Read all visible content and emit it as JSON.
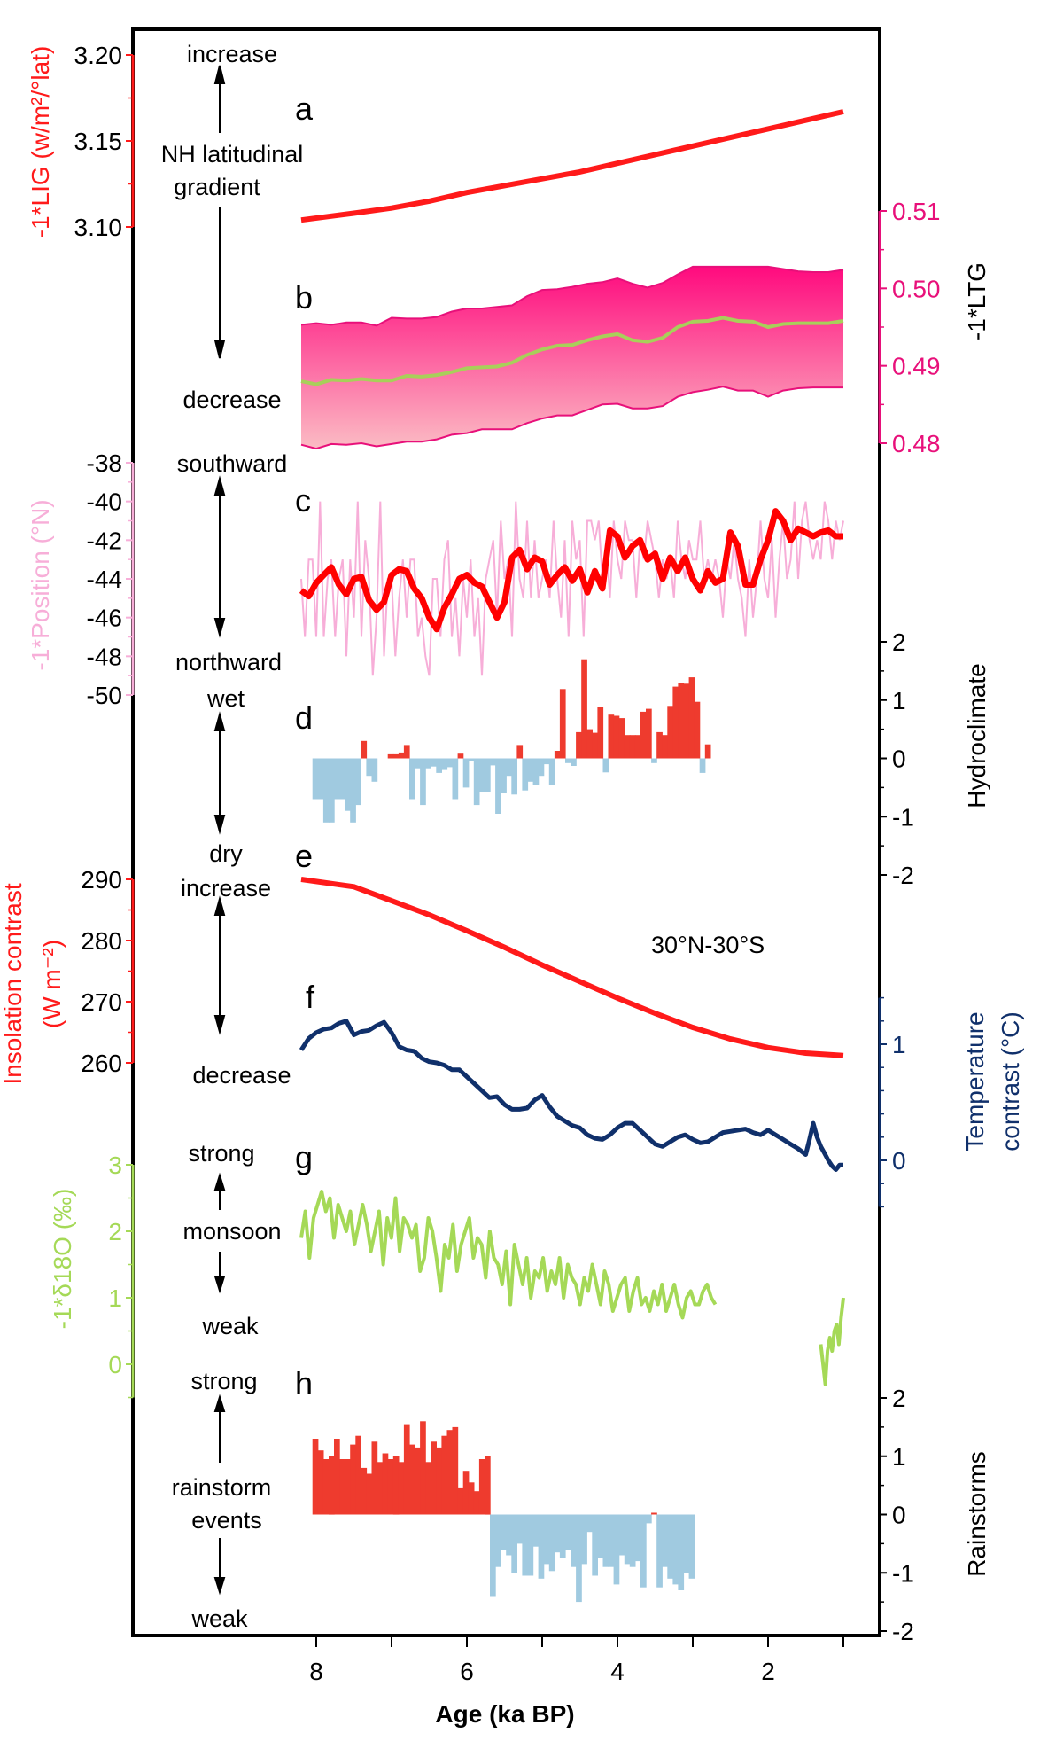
{
  "chart_data": [
    {
      "panel": "a",
      "type": "line",
      "title": "NH latitudinal gradient",
      "ylabel": "-1*LIG (w/m²/°lat)",
      "yaxis_side": "left",
      "yticks": [
        "3.20",
        "3.15",
        "3.10"
      ],
      "ylim": [
        3.1,
        3.2
      ],
      "color": "#ff1a1a",
      "annotations": {
        "top": "increase",
        "bottom": "decrease",
        "middle": [
          "NH latitudinal",
          "gradient"
        ]
      },
      "x": [
        8.2,
        7.5,
        7,
        6.5,
        6,
        5.5,
        5,
        4.5,
        4,
        3.5,
        3,
        2.5,
        2,
        1.5,
        1
      ],
      "y": [
        3.104,
        3.108,
        3.111,
        3.115,
        3.12,
        3.124,
        3.128,
        3.132,
        3.137,
        3.142,
        3.147,
        3.152,
        3.157,
        3.162,
        3.167
      ]
    },
    {
      "panel": "b",
      "type": "area",
      "ylabel": "-1*LTG",
      "yaxis_side": "right",
      "yticks": [
        "0.51",
        "0.50",
        "0.49",
        "0.48"
      ],
      "ylim": [
        0.48,
        0.51
      ],
      "band_color_top": "#ff0a7e",
      "band_color_bottom": "#fbb9c2",
      "mean_color": "#a8cf5a",
      "x": [
        8.2,
        8.0,
        7.8,
        7.6,
        7.4,
        7.2,
        7.0,
        6.8,
        6.6,
        6.4,
        6.2,
        6.0,
        5.8,
        5.6,
        5.4,
        5.2,
        5.0,
        4.8,
        4.6,
        4.4,
        4.2,
        4.0,
        3.8,
        3.6,
        3.4,
        3.2,
        3.0,
        2.8,
        2.6,
        2.4,
        2.2,
        2.0,
        1.8,
        1.6,
        1.4,
        1.2,
        1.0
      ],
      "upper": [
        0.4953,
        0.4955,
        0.4953,
        0.4956,
        0.4956,
        0.4952,
        0.4962,
        0.4961,
        0.4961,
        0.4963,
        0.497,
        0.4974,
        0.4974,
        0.4976,
        0.4978,
        0.499,
        0.4998,
        0.4999,
        0.5002,
        0.5006,
        0.5008,
        0.5013,
        0.5006,
        0.5001,
        0.5007,
        0.5018,
        0.5028,
        0.5028,
        0.5028,
        0.5028,
        0.5028,
        0.5028,
        0.5025,
        0.5022,
        0.5021,
        0.5021,
        0.5024
      ],
      "mean": [
        0.488,
        0.4876,
        0.4882,
        0.4881,
        0.4883,
        0.4881,
        0.4881,
        0.4887,
        0.4886,
        0.4888,
        0.4892,
        0.4897,
        0.4898,
        0.4899,
        0.4904,
        0.4914,
        0.4921,
        0.4926,
        0.4927,
        0.4933,
        0.4938,
        0.4941,
        0.4933,
        0.4931,
        0.4936,
        0.495,
        0.4957,
        0.4958,
        0.4962,
        0.4958,
        0.4957,
        0.495,
        0.4954,
        0.4955,
        0.4955,
        0.4955,
        0.4958
      ],
      "lower": [
        0.4798,
        0.4793,
        0.4799,
        0.4798,
        0.48,
        0.4796,
        0.4799,
        0.4802,
        0.4802,
        0.4805,
        0.4811,
        0.4813,
        0.4818,
        0.4818,
        0.4818,
        0.4826,
        0.4832,
        0.4836,
        0.4836,
        0.4843,
        0.485,
        0.4851,
        0.4845,
        0.4845,
        0.4848,
        0.486,
        0.4866,
        0.4869,
        0.4873,
        0.4868,
        0.4868,
        0.486,
        0.4868,
        0.4871,
        0.4872,
        0.4872,
        0.4872
      ]
    },
    {
      "panel": "c",
      "type": "line",
      "ylabel": "-1*Position (°N)",
      "yaxis_side": "left",
      "yticks": [
        "-38",
        "-40",
        "-42",
        "-44",
        "-46",
        "-48",
        "-50"
      ],
      "ylim": [
        -50,
        -38
      ],
      "raw_color": "#f7aed8",
      "smooth_color": "#ff0000",
      "annotations": {
        "top": "southward",
        "bottom": "northward"
      },
      "x_smooth": [
        8.2,
        8.1,
        8.0,
        7.9,
        7.8,
        7.7,
        7.6,
        7.5,
        7.4,
        7.3,
        7.2,
        7.1,
        7.0,
        6.9,
        6.8,
        6.7,
        6.6,
        6.5,
        6.4,
        6.3,
        6.2,
        6.1,
        6.0,
        5.9,
        5.8,
        5.7,
        5.6,
        5.5,
        5.4,
        5.3,
        5.2,
        5.1,
        5.0,
        4.9,
        4.8,
        4.7,
        4.6,
        4.5,
        4.4,
        4.3,
        4.2,
        4.1,
        4.0,
        3.9,
        3.8,
        3.7,
        3.6,
        3.5,
        3.4,
        3.3,
        3.2,
        3.1,
        3.0,
        2.9,
        2.8,
        2.7,
        2.6,
        2.5,
        2.4,
        2.3,
        2.2,
        2.1,
        2.0,
        1.9,
        1.8,
        1.7,
        1.6,
        1.5,
        1.4,
        1.3,
        1.2,
        1.1,
        1.0
      ],
      "smooth": [
        -44.6,
        -44.9,
        -44.2,
        -43.8,
        -43.4,
        -44.3,
        -44.8,
        -44.0,
        -43.9,
        -45.1,
        -45.6,
        -45.2,
        -43.8,
        -43.5,
        -43.6,
        -44.5,
        -45.0,
        -46.0,
        -46.6,
        -45.5,
        -44.8,
        -44.0,
        -43.8,
        -44.2,
        -44.4,
        -45.2,
        -46.0,
        -45.2,
        -42.9,
        -42.5,
        -43.5,
        -42.9,
        -43.1,
        -44.3,
        -43.8,
        -43.4,
        -44.1,
        -43.5,
        -44.7,
        -43.6,
        -44.5,
        -41.5,
        -41.8,
        -42.9,
        -42.3,
        -42.0,
        -43.0,
        -42.7,
        -44.0,
        -42.9,
        -43.6,
        -42.9,
        -44.0,
        -44.6,
        -43.6,
        -44.2,
        -44.0,
        -41.6,
        -42.3,
        -44.3,
        -44.3,
        -43.0,
        -42.0,
        -40.5,
        -41.0,
        -42.0,
        -41.4,
        -41.6,
        -41.8,
        -41.6,
        -41.5,
        -41.8,
        -41.8
      ],
      "x_raw": [
        8.2,
        8.15,
        8.1,
        8.05,
        8.0,
        7.95,
        7.9,
        7.85,
        7.8,
        7.75,
        7.7,
        7.65,
        7.6,
        7.55,
        7.5,
        7.45,
        7.4,
        7.35,
        7.3,
        7.25,
        7.2,
        7.15,
        7.1,
        7.05,
        7.0,
        6.95,
        6.9,
        6.85,
        6.8,
        6.75,
        6.7,
        6.65,
        6.6,
        6.55,
        6.5,
        6.45,
        6.4,
        6.35,
        6.3,
        6.25,
        6.2,
        6.15,
        6.1,
        6.05,
        6.0,
        5.95,
        5.9,
        5.85,
        5.8,
        5.75,
        5.7,
        5.65,
        5.6,
        5.55,
        5.5,
        5.45,
        5.4,
        5.35,
        5.3,
        5.25,
        5.2,
        5.15,
        5.1,
        5.05,
        5.0,
        4.95,
        4.9,
        4.85,
        4.8,
        4.75,
        4.7,
        4.65,
        4.6,
        4.55,
        4.5,
        4.45,
        4.4,
        4.35,
        4.3,
        4.25,
        4.2,
        4.15,
        4.1,
        4.05,
        4.0,
        3.95,
        3.9,
        3.85,
        3.8,
        3.75,
        3.7,
        3.65,
        3.6,
        3.55,
        3.5,
        3.45,
        3.4,
        3.35,
        3.3,
        3.25,
        3.2,
        3.15,
        3.1,
        3.05,
        3.0,
        2.95,
        2.9,
        2.85,
        2.8,
        2.75,
        2.7,
        2.65,
        2.6,
        2.55,
        2.5,
        2.45,
        2.4,
        2.35,
        2.3,
        2.25,
        2.2,
        2.15,
        2.1,
        2.05,
        2.0,
        1.95,
        1.9,
        1.85,
        1.8,
        1.75,
        1.7,
        1.65,
        1.6,
        1.55,
        1.5,
        1.45,
        1.4,
        1.35,
        1.3,
        1.25,
        1.2,
        1.15,
        1.1,
        1.05,
        1.0
      ],
      "raw": [
        -44,
        -47,
        -43,
        -43,
        -47,
        -40,
        -47,
        -44,
        -43,
        -47,
        -44,
        -43,
        -48,
        -43,
        -46,
        -40,
        -47,
        -42,
        -44,
        -49,
        -46,
        -40,
        -48,
        -44,
        -44,
        -48,
        -45,
        -43,
        -46,
        -43,
        -43,
        -47,
        -46,
        -48,
        -49,
        -44,
        -44,
        -47,
        -43,
        -42,
        -47,
        -45,
        -48,
        -44,
        -46,
        -43,
        -47,
        -45,
        -49,
        -44,
        -43,
        -42,
        -46,
        -41,
        -44,
        -43,
        -47,
        -40,
        -44,
        -45,
        -41,
        -45,
        -42,
        -45,
        -44,
        -43,
        -45,
        -41,
        -44,
        -46,
        -42,
        -47,
        -41,
        -43,
        -42,
        -47,
        -41,
        -41,
        -42,
        -41,
        -44,
        -42,
        -45,
        -41,
        -43,
        -44,
        -41,
        -42,
        -42,
        -45,
        -42,
        -43,
        -41,
        -42,
        -43,
        -45,
        -43,
        -44,
        -43,
        -45,
        -41,
        -43,
        -44,
        -42,
        -43,
        -43,
        -41,
        -44,
        -43,
        -44,
        -43,
        -44,
        -46,
        -43,
        -44,
        -42,
        -44,
        -45,
        -47,
        -43,
        -46,
        -44,
        -41,
        -44,
        -45,
        -42,
        -46,
        -43,
        -41,
        -44,
        -43,
        -40,
        -44,
        -41,
        -40,
        -42,
        -43,
        -42,
        -43,
        -40,
        -41,
        -43,
        -41,
        -42,
        -41
      ]
    },
    {
      "panel": "d",
      "type": "bar",
      "ylabel": "Hydroclimate",
      "yaxis_side": "right",
      "yticks": [
        "2",
        "1",
        "0",
        "-1",
        "-2"
      ],
      "ylim": [
        -2,
        2
      ],
      "positive_color": "#ee3b2e",
      "negative_color": "#a0cae0",
      "annotations": {
        "top": "wet",
        "bottom": "dry"
      },
      "x_start": 8.05,
      "bin_width": 0.0714,
      "values": [
        -0.7,
        -0.7,
        -1.1,
        -1.1,
        -0.7,
        -0.7,
        -0.9,
        -1.1,
        -0.8,
        0.3,
        -0.3,
        -0.4,
        0.0,
        0.0,
        0.07,
        0.07,
        0.1,
        0.23,
        -0.7,
        -0.17,
        -0.8,
        -0.17,
        -0.14,
        -0.25,
        -0.2,
        -0.15,
        -0.7,
        0.08,
        -0.5,
        -0.05,
        -0.8,
        -0.58,
        -0.57,
        -0.12,
        -0.95,
        -0.6,
        -0.3,
        -0.62,
        0.23,
        -0.55,
        -0.4,
        -0.45,
        -0.3,
        -0.1,
        -0.45,
        0.13,
        1.19,
        -0.08,
        -0.13,
        0.45,
        1.7,
        0.5,
        0.44,
        0.89,
        -0.24,
        0.75,
        0.73,
        0.69,
        0.4,
        0.4,
        0.4,
        0.8,
        0.85,
        -0.08,
        0.45,
        0.4,
        0.9,
        1.23,
        1.3,
        1.28,
        1.39,
        0.97,
        -0.25,
        0.24
      ]
    },
    {
      "panel": "e",
      "type": "line",
      "ylabel": "Insolation contrast (W m⁻²)",
      "yaxis_side": "left",
      "yticks": [
        "290",
        "280",
        "270",
        "260"
      ],
      "ylim": [
        260,
        290
      ],
      "color": "#ff1a1a",
      "label": "30°N-30°S",
      "annotations": {
        "top": "increase",
        "bottom": "decrease"
      },
      "x": [
        8.2,
        7.5,
        7.0,
        6.5,
        6.0,
        5.5,
        5.0,
        4.5,
        4.0,
        3.5,
        3.0,
        2.5,
        2.0,
        1.5,
        1.0
      ],
      "y": [
        290.0,
        288.8,
        286.5,
        284.2,
        281.6,
        278.9,
        276.0,
        273.3,
        270.6,
        268.1,
        265.8,
        263.9,
        262.5,
        261.6,
        261.2
      ]
    },
    {
      "panel": "f",
      "type": "line",
      "ylabel": "Temperature contrast (°C)",
      "yaxis_side": "right",
      "yticks": [
        "1",
        "0"
      ],
      "ylim": [
        -0.4,
        1.5
      ],
      "color": "#10306b",
      "x": [
        8.2,
        8.1,
        8.0,
        7.9,
        7.8,
        7.7,
        7.6,
        7.5,
        7.4,
        7.3,
        7.2,
        7.1,
        7.0,
        6.9,
        6.8,
        6.7,
        6.6,
        6.5,
        6.4,
        6.3,
        6.2,
        6.1,
        6.0,
        5.9,
        5.8,
        5.7,
        5.6,
        5.5,
        5.4,
        5.3,
        5.2,
        5.1,
        5.0,
        4.9,
        4.8,
        4.7,
        4.6,
        4.5,
        4.4,
        4.3,
        4.2,
        4.1,
        4.0,
        3.9,
        3.8,
        3.7,
        3.6,
        3.5,
        3.4,
        3.3,
        3.2,
        3.1,
        3.0,
        2.9,
        2.8,
        2.7,
        2.6,
        2.5,
        2.4,
        2.3,
        2.2,
        2.1,
        2.0,
        1.9,
        1.8,
        1.7,
        1.6,
        1.5,
        1.45,
        1.4,
        1.35,
        1.3,
        1.25,
        1.2,
        1.15,
        1.1,
        1.05,
        1.0
      ],
      "y": [
        0.95,
        1.05,
        1.1,
        1.13,
        1.14,
        1.18,
        1.2,
        1.08,
        1.11,
        1.12,
        1.16,
        1.19,
        1.1,
        0.98,
        0.95,
        0.94,
        0.88,
        0.85,
        0.84,
        0.82,
        0.78,
        0.78,
        0.72,
        0.66,
        0.6,
        0.54,
        0.55,
        0.48,
        0.44,
        0.44,
        0.45,
        0.52,
        0.56,
        0.46,
        0.38,
        0.34,
        0.3,
        0.28,
        0.22,
        0.19,
        0.18,
        0.22,
        0.28,
        0.32,
        0.32,
        0.26,
        0.2,
        0.14,
        0.12,
        0.16,
        0.2,
        0.22,
        0.18,
        0.15,
        0.16,
        0.2,
        0.24,
        0.25,
        0.26,
        0.27,
        0.24,
        0.22,
        0.26,
        0.22,
        0.18,
        0.14,
        0.1,
        0.05,
        0.18,
        0.32,
        0.2,
        0.12,
        0.06,
        0.0,
        -0.05,
        -0.08,
        -0.04,
        -0.04
      ]
    },
    {
      "panel": "g",
      "type": "line",
      "ylabel": "-1*δ18O (‰)",
      "yaxis_side": "left",
      "yticks": [
        "3",
        "2",
        "1",
        "0"
      ],
      "ylim": [
        -0.5,
        3.4
      ],
      "color": "#a5d957",
      "annotations": {
        "top": "strong",
        "middle": "monsoon",
        "bottom": "weak"
      },
      "segment1_x_range": [
        8.2,
        2.7
      ],
      "segment2_x_range": [
        1.3,
        1.0
      ],
      "segment1": [
        1.9,
        2.3,
        1.6,
        2.2,
        2.4,
        2.6,
        2.3,
        2.5,
        1.9,
        2.4,
        2.2,
        2.0,
        2.3,
        1.8,
        2.1,
        2.4,
        2.1,
        1.7,
        2.0,
        2.3,
        1.5,
        2.2,
        1.9,
        2.5,
        1.7,
        2.2,
        2.1,
        1.9,
        2.1,
        1.4,
        1.6,
        2.2,
        2.0,
        1.6,
        1.1,
        1.8,
        1.6,
        2.1,
        1.4,
        1.8,
        2.0,
        2.2,
        1.6,
        1.9,
        1.8,
        1.3,
        2.0,
        1.6,
        1.5,
        1.2,
        1.7,
        0.9,
        1.8,
        1.5,
        1.2,
        1.6,
        1.0,
        1.4,
        1.3,
        1.6,
        1.1,
        1.4,
        1.2,
        1.6,
        1.0,
        1.5,
        1.3,
        1.2,
        0.9,
        1.3,
        1.1,
        1.5,
        1.2,
        0.9,
        1.4,
        1.2,
        0.8,
        1.0,
        1.2,
        1.3,
        0.8,
        1.1,
        1.3,
        0.9,
        1.0,
        0.8,
        1.1,
        0.9,
        1.2,
        0.8,
        1.0,
        1.2,
        0.9,
        0.7,
        1.0,
        1.1,
        0.9,
        0.9,
        1.1,
        1.2,
        1.0,
        0.9
      ],
      "segment2": [
        0.3,
        0.0,
        -0.3,
        0.2,
        0.4,
        0.2,
        0.5,
        0.6,
        0.3,
        0.7,
        1.0
      ]
    },
    {
      "panel": "h",
      "type": "bar",
      "ylabel": "Rainstorms",
      "yaxis_side": "right",
      "yticks": [
        "2",
        "1",
        "0",
        "-1",
        "-2"
      ],
      "ylim": [
        -2,
        2
      ],
      "positive_color": "#ee3b2e",
      "negative_color": "#a0cae0",
      "annotations": {
        "top": "strong",
        "middle": [
          "rainstorm",
          "events"
        ],
        "bottom": "weak"
      },
      "x_start": 8.05,
      "bin_width": 0.0714,
      "values": [
        1.3,
        1.1,
        0.95,
        1.0,
        1.3,
        0.95,
        0.95,
        1.2,
        1.35,
        0.8,
        0.7,
        1.25,
        0.9,
        1.05,
        0.95,
        1.0,
        0.9,
        1.55,
        1.2,
        1.15,
        1.6,
        0.9,
        1.25,
        1.15,
        1.35,
        1.45,
        1.5,
        0.45,
        0.75,
        0.55,
        0.4,
        0.95,
        1.0,
        -1.4,
        -0.9,
        -0.6,
        -0.7,
        -1.0,
        -0.5,
        -1.05,
        -1.05,
        -0.55,
        -1.1,
        -0.85,
        -0.97,
        -0.65,
        -0.75,
        -0.6,
        -0.9,
        -1.5,
        -0.85,
        -0.3,
        -1.05,
        -0.75,
        -0.9,
        -0.9,
        -1.2,
        -0.7,
        -0.85,
        -0.9,
        -0.8,
        -1.25,
        -0.15,
        0.03,
        -1.25,
        -0.9,
        -1.1,
        -1.2,
        -1.3,
        -1.0,
        -1.1
      ]
    }
  ],
  "xaxis": {
    "label": "Age (ka BP)",
    "ticks": [
      "8",
      "6",
      "4",
      "2"
    ],
    "xlim": [
      8.7,
      0.6
    ],
    "reversed": true
  },
  "panel_labels": [
    "a",
    "b",
    "c",
    "d",
    "e",
    "f",
    "g",
    "h"
  ]
}
